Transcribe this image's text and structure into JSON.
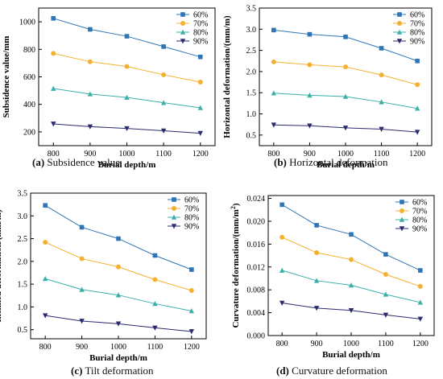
{
  "figure": {
    "colors": {
      "s60": "#2E75B6",
      "s70": "#F4B12F",
      "s80": "#3BB0A8",
      "s90": "#2B2B6E"
    },
    "panels": [
      {
        "id": "a",
        "caption_letter": "(a)",
        "caption_text": "Subsidence value",
        "chart_data": {
          "type": "line",
          "xlabel": "Burial depth/m",
          "ylabel": "Subsidence value/mm",
          "x": [
            800,
            900,
            1000,
            1100,
            1200
          ],
          "xticks": [
            "800",
            "900",
            "1000",
            "1100",
            "1200"
          ],
          "xlim": [
            760,
            1240
          ],
          "ylim": [
            100,
            1100
          ],
          "yticks": [
            "200",
            "400",
            "600",
            "800",
            "1000"
          ],
          "ytick_values": [
            200,
            400,
            600,
            800,
            1000
          ],
          "legend": "top-right",
          "series": [
            {
              "name": "60%",
              "marker": "square",
              "values": [
                1025,
                945,
                895,
                820,
                745
              ]
            },
            {
              "name": "70%",
              "marker": "circle",
              "values": [
                770,
                710,
                675,
                615,
                562
              ]
            },
            {
              "name": "80%",
              "marker": "triangle-up",
              "values": [
                515,
                475,
                450,
                412,
                375
              ]
            },
            {
              "name": "90%",
              "marker": "triangle-down",
              "values": [
                258,
                238,
                225,
                208,
                190
              ]
            }
          ]
        }
      },
      {
        "id": "b",
        "caption_letter": "(b)",
        "caption_text": "Horizontal deformation",
        "chart_data": {
          "type": "line",
          "xlabel": "Burial depth/m",
          "ylabel": "Horizontal deformation/(mm/m)",
          "x": [
            800,
            900,
            1000,
            1100,
            1200
          ],
          "xticks": [
            "800",
            "900",
            "1000",
            "1100",
            "1200"
          ],
          "xlim": [
            760,
            1240
          ],
          "ylim": [
            0.25,
            3.5
          ],
          "yticks": [
            "0.5",
            "1.0",
            "1.5",
            "2.0",
            "2.5",
            "3.0",
            "3.5"
          ],
          "ytick_values": [
            0.5,
            1.0,
            1.5,
            2.0,
            2.5,
            3.0,
            3.5
          ],
          "legend": "top-right",
          "series": [
            {
              "name": "60%",
              "marker": "square",
              "values": [
                2.98,
                2.88,
                2.82,
                2.55,
                2.25
              ]
            },
            {
              "name": "70%",
              "marker": "circle",
              "values": [
                2.23,
                2.16,
                2.11,
                1.92,
                1.69
              ]
            },
            {
              "name": "80%",
              "marker": "triangle-up",
              "values": [
                1.49,
                1.44,
                1.41,
                1.28,
                1.13
              ]
            },
            {
              "name": "90%",
              "marker": "triangle-down",
              "values": [
                0.74,
                0.72,
                0.67,
                0.64,
                0.57
              ]
            }
          ]
        }
      },
      {
        "id": "c",
        "caption_letter": "(c)",
        "caption_text": "Tilt deformation",
        "chart_data": {
          "type": "line",
          "xlabel": "Burial depth/m",
          "ylabel": "Inclined deformation/(mm/m)",
          "x": [
            800,
            900,
            1000,
            1100,
            1200
          ],
          "xticks": [
            "800",
            "900",
            "1000",
            "1100",
            "1200"
          ],
          "xlim": [
            760,
            1240
          ],
          "ylim": [
            0.3,
            3.5
          ],
          "yticks": [
            "0.5",
            "1.0",
            "1.5",
            "2.0",
            "2.5",
            "3.0",
            "3.5"
          ],
          "ytick_values": [
            0.5,
            1.0,
            1.5,
            2.0,
            2.5,
            3.0,
            3.5
          ],
          "legend": "top-right",
          "series": [
            {
              "name": "60%",
              "marker": "square",
              "values": [
                3.23,
                2.75,
                2.5,
                2.13,
                1.82
              ]
            },
            {
              "name": "70%",
              "marker": "circle",
              "values": [
                2.42,
                2.06,
                1.88,
                1.6,
                1.36
              ]
            },
            {
              "name": "80%",
              "marker": "triangle-up",
              "values": [
                1.62,
                1.38,
                1.26,
                1.07,
                0.91
              ]
            },
            {
              "name": "90%",
              "marker": "triangle-down",
              "values": [
                0.81,
                0.69,
                0.63,
                0.54,
                0.46
              ]
            }
          ]
        }
      },
      {
        "id": "d",
        "caption_letter": "(d)",
        "caption_text": "Curvature deformation",
        "chart_data": {
          "type": "line",
          "xlabel": "Burial depth/m",
          "ylabel": "Curvature deformation/(mm/m",
          "ylabel_sup": "2",
          "ylabel_end": ")",
          "x": [
            800,
            900,
            1000,
            1100,
            1200
          ],
          "xticks": [
            "800",
            "900",
            "1000",
            "1100",
            "1200"
          ],
          "xlim": [
            760,
            1240
          ],
          "ylim": [
            0.0,
            0.0245
          ],
          "yticks": [
            "0.000",
            "0.004",
            "0.008",
            "0.012",
            "0.016",
            "0.020",
            "0.024"
          ],
          "ytick_values": [
            0.0,
            0.004,
            0.008,
            0.012,
            0.016,
            0.02,
            0.024
          ],
          "legend": "top-right",
          "series": [
            {
              "name": "60%",
              "marker": "square",
              "values": [
                0.0229,
                0.0193,
                0.0177,
                0.0142,
                0.0114
              ]
            },
            {
              "name": "70%",
              "marker": "circle",
              "values": [
                0.0172,
                0.0145,
                0.0133,
                0.0107,
                0.0086
              ]
            },
            {
              "name": "80%",
              "marker": "triangle-up",
              "values": [
                0.0114,
                0.0096,
                0.0088,
                0.0072,
                0.0058
              ]
            },
            {
              "name": "90%",
              "marker": "triangle-down",
              "values": [
                0.0057,
                0.0048,
                0.0044,
                0.0036,
                0.0029
              ]
            }
          ]
        }
      }
    ]
  }
}
